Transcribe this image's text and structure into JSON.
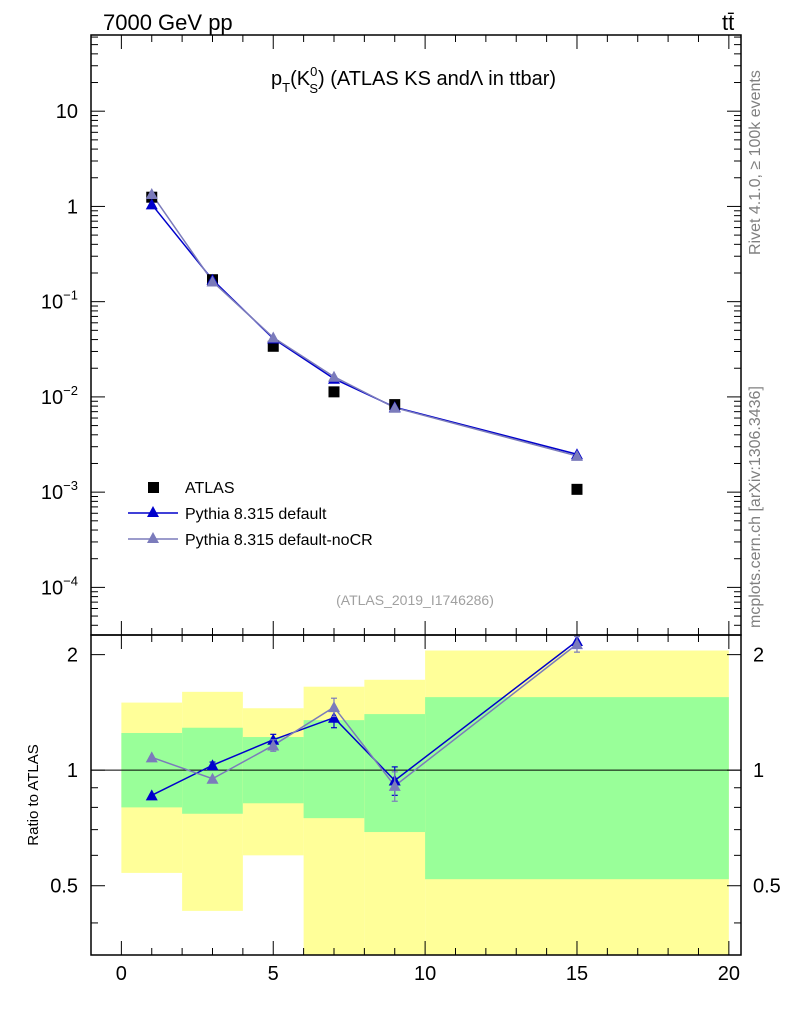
{
  "header": {
    "left_label": "7000 GeV pp",
    "right_label": "tt̄"
  },
  "side_labels": {
    "rivet": "Rivet 4.1.0, ≥ 100k events",
    "mcplots": "mcplots.cern.ch [arXiv:1306.3436]"
  },
  "chart_data": [
    {
      "type": "scatter",
      "panel": "main",
      "title": {
        "p": "p",
        "T": "T",
        "K": "(K",
        "sup0": "0",
        "subS": "S",
        "rest": ") (ATLAS KS and",
        "lambda": "Λ",
        "tail": "in ttbar)"
      },
      "watermark": "(ATLAS_2019_I1746286)",
      "xlim": [
        -1,
        20.4
      ],
      "ylim_log10": [
        -4.5,
        1.8
      ],
      "ytick_labels": [
        {
          "exp": 1,
          "base": "10",
          "sup": ""
        },
        {
          "exp": 0,
          "base": "1",
          "sup": ""
        },
        {
          "exp": -1,
          "base": "10",
          "sup": "−1"
        },
        {
          "exp": -2,
          "base": "10",
          "sup": "−2"
        },
        {
          "exp": -3,
          "base": "10",
          "sup": "−3"
        },
        {
          "exp": -4,
          "base": "10",
          "sup": "−4"
        }
      ],
      "legend_position": "lower-left",
      "series": [
        {
          "name": "ATLAS",
          "marker": "square",
          "color": "#000000",
          "x": [
            1,
            3,
            5,
            7,
            9,
            15
          ],
          "y": [
            1.25,
            0.17,
            0.034,
            0.0113,
            0.0083,
            0.00107
          ]
        },
        {
          "name": "Pythia 8.315 default",
          "marker": "triangle",
          "color": "#0000cc",
          "x": [
            1,
            3,
            5,
            7,
            9,
            15
          ],
          "y": [
            1.05,
            0.17,
            0.041,
            0.0155,
            0.0078,
            0.0025
          ]
        },
        {
          "name": "Pythia 8.315 default-noCR",
          "marker": "triangle",
          "color": "#7b7bbb",
          "x": [
            1,
            3,
            5,
            7,
            9,
            15
          ],
          "y": [
            1.35,
            0.163,
            0.042,
            0.0163,
            0.0077,
            0.0024
          ]
        }
      ]
    },
    {
      "type": "scatter",
      "panel": "ratio",
      "ylabel": "Ratio to ATLAS",
      "xlim": [
        -1,
        20.4
      ],
      "ylim": [
        0.33,
        2.25
      ],
      "ylog": true,
      "xticks": [
        0,
        5,
        10,
        15,
        20
      ],
      "yticks": [
        0.5,
        1,
        2
      ],
      "reference_line": 1.0,
      "bands": [
        {
          "x0": 0,
          "x1": 2,
          "yellow": [
            0.54,
            1.5
          ],
          "green": [
            0.8,
            1.25
          ]
        },
        {
          "x0": 2,
          "x1": 4,
          "yellow": [
            0.43,
            1.6
          ],
          "green": [
            0.77,
            1.29
          ]
        },
        {
          "x0": 4,
          "x1": 6,
          "yellow": [
            0.6,
            1.45
          ],
          "green": [
            0.82,
            1.22
          ]
        },
        {
          "x0": 6,
          "x1": 8,
          "yellow": [
            0.33,
            1.65
          ],
          "green": [
            0.75,
            1.35
          ]
        },
        {
          "x0": 8,
          "x1": 10,
          "yellow": [
            0.33,
            1.72
          ],
          "green": [
            0.69,
            1.4
          ]
        },
        {
          "x0": 10,
          "x1": 20,
          "yellow": [
            0.33,
            2.05
          ],
          "green": [
            0.52,
            1.55
          ]
        }
      ],
      "series": [
        {
          "name": "Pythia 8.315 default",
          "color": "#0000cc",
          "x": [
            1,
            3,
            5,
            7,
            9,
            15
          ],
          "y": [
            0.86,
            1.03,
            1.2,
            1.37,
            0.94,
            2.3
          ],
          "err": [
            0.0,
            0.02,
            0.04,
            0.08,
            0.08,
            0.0
          ]
        },
        {
          "name": "Pythia 8.315 default-noCR",
          "color": "#7b7bbb",
          "x": [
            1,
            3,
            5,
            7,
            9,
            15
          ],
          "y": [
            1.08,
            0.95,
            1.16,
            1.46,
            0.91,
            2.13
          ],
          "err": [
            0.0,
            0.0,
            0.04,
            0.08,
            0.08,
            0.1
          ]
        }
      ]
    }
  ]
}
